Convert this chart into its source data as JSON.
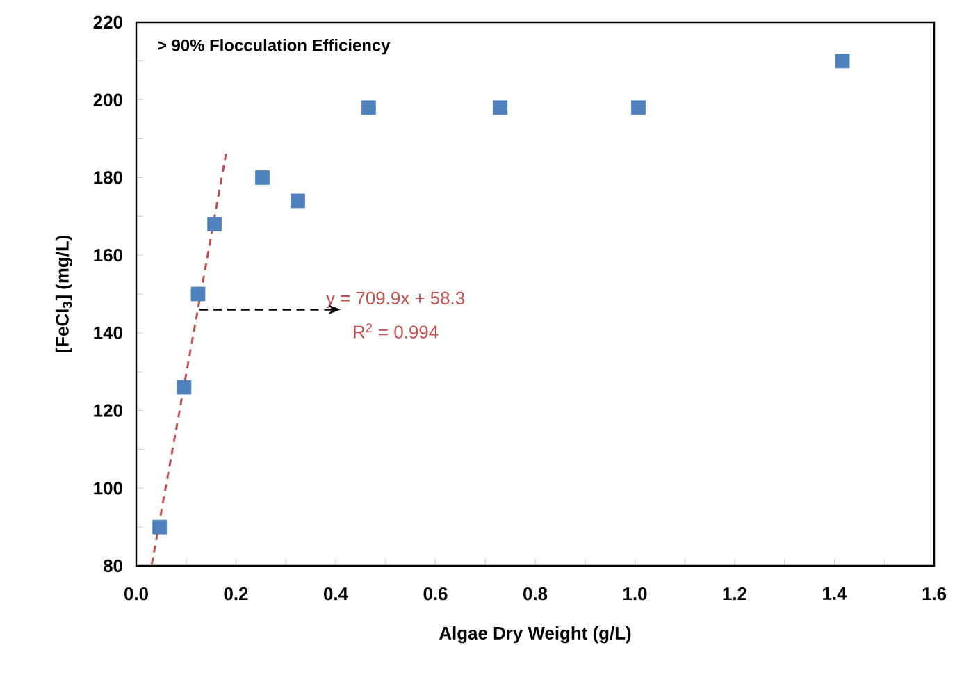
{
  "chart_data": {
    "type": "scatter",
    "xlabel": "Algae Dry Weight (g/L)",
    "ylabel": "[FeCl$_{3}$] (mg/L)",
    "annotations": [
      "> 90% Flocculation Efficiency",
      {
        "text": "y = 709.9x + 58.3",
        "x": 0.127,
        "y": 146
      },
      "R$^{2}$ = 0.994"
    ],
    "xlim": [
      0,
      1.6
    ],
    "ylim": [
      80,
      220
    ],
    "xticks": [
      {
        "value": 0,
        "label": "0.0"
      },
      {
        "value": 0.1,
        "label": null
      },
      {
        "value": 0.2,
        "label": "0.2"
      },
      {
        "value": 0.3,
        "label": null
      },
      {
        "value": 0.4,
        "label": "0.4"
      },
      {
        "value": 0.5,
        "label": null
      },
      {
        "value": 0.6,
        "label": "0.6"
      },
      {
        "value": 0.7,
        "label": null
      },
      {
        "value": 0.8,
        "label": "0.8"
      },
      {
        "value": 0.9,
        "label": null
      },
      {
        "value": 1.0,
        "label": "1.0"
      },
      {
        "value": 1.1,
        "label": null
      },
      {
        "value": 1.2,
        "label": "1.2"
      },
      {
        "value": 1.3,
        "label": null
      },
      {
        "value": 1.4,
        "label": "1.4"
      },
      {
        "value": 1.5,
        "label": null
      },
      {
        "value": 1.6,
        "label": "1.6"
      }
    ],
    "yticks": [
      80,
      {
        "value": 90,
        "label": null
      },
      100,
      {
        "value": 110,
        "label": null
      },
      120,
      {
        "value": 130,
        "label": null
      },
      140,
      {
        "value": 150,
        "label": null
      },
      160,
      {
        "value": 170,
        "label": null
      },
      180,
      {
        "value": 190,
        "label": null
      },
      200,
      {
        "value": 210,
        "label": null
      },
      220
    ],
    "grid": false,
    "series": [
      {
        "marker": "square",
        "color": "#4f81bd",
        "x": [
          0.047,
          0.096,
          0.124,
          0.157,
          0.253,
          0.324,
          0.466,
          0.73,
          1.007,
          1.416
        ],
        "values": [
          90,
          126,
          150,
          168,
          180,
          174,
          198,
          198,
          198,
          210
        ]
      },
      {
        "type": "line",
        "marker": "none",
        "line_style": "dashed",
        "color": "#c0504d",
        "x": [
          0.031,
          0.18
        ],
        "values": [
          80.3,
          186.1
        ]
      }
    ]
  }
}
